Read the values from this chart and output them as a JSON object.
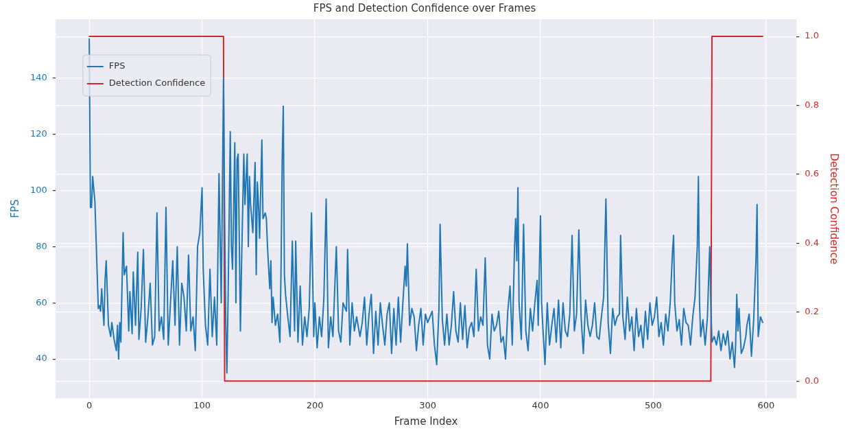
{
  "chart_data": {
    "type": "line",
    "title": "FPS and Detection Confidence over Frames",
    "xlabel": "Frame Index",
    "ylabel": "FPS",
    "y2label": "Detection Confidence",
    "xlim": [
      -30,
      627
    ],
    "xticks": [
      0,
      100,
      200,
      300,
      400,
      500,
      600
    ],
    "ylim": [
      26,
      161
    ],
    "yticks": [
      40,
      60,
      80,
      100,
      120,
      140
    ],
    "y2lim": [
      -0.05,
      1.05
    ],
    "y2ticks": [
      {
        "value": 0,
        "label": "0.0"
      },
      0.2,
      0.4,
      0.6,
      0.8,
      {
        "value": 1,
        "label": "1.0"
      }
    ],
    "grid": true,
    "legend": "top left",
    "line_style": "solid",
    "marker": "none",
    "series": [
      {
        "name": "FPS",
        "color": "#1f77b4",
        "axis": "y",
        "x": [
          0,
          1,
          2,
          3,
          5,
          8,
          9,
          10,
          11,
          13,
          14,
          15,
          17,
          19,
          20,
          22,
          24,
          25,
          26,
          27,
          28,
          30,
          31,
          33,
          35,
          36,
          38,
          39,
          41,
          43,
          44,
          46,
          48,
          50,
          52,
          54,
          56,
          58,
          60,
          62,
          64,
          66,
          68,
          70,
          72,
          74,
          76,
          78,
          80,
          82,
          84,
          86,
          88,
          90,
          92,
          94,
          96,
          98,
          100,
          101,
          103,
          105,
          107,
          109,
          111,
          113,
          115,
          117,
          119,
          120,
          121,
          122,
          123,
          125,
          126,
          127,
          129,
          130,
          131,
          132,
          134,
          135,
          137,
          138,
          140,
          141,
          142,
          143,
          145,
          147,
          148,
          149,
          150,
          151,
          153,
          154,
          156,
          157,
          158,
          160,
          161,
          162,
          163,
          165,
          167,
          169,
          170,
          171,
          172,
          173,
          174,
          176,
          178,
          180,
          182,
          183,
          185,
          187,
          189,
          191,
          193,
          195,
          197,
          199,
          200,
          202,
          204,
          206,
          208,
          210,
          212,
          214,
          216,
          219,
          221,
          223,
          225,
          228,
          229,
          231,
          233,
          235,
          237,
          240,
          242,
          244,
          246,
          248,
          250,
          252,
          254,
          256,
          258,
          260,
          262,
          264,
          266,
          268,
          270,
          272,
          274,
          276,
          278,
          280,
          281,
          282,
          284,
          286,
          288,
          290,
          292,
          294,
          296,
          298,
          300,
          302,
          304,
          306,
          308,
          310,
          311,
          313,
          315,
          317,
          319,
          321,
          323,
          325,
          327,
          329,
          331,
          333,
          335,
          337,
          339,
          341,
          343,
          345,
          347,
          349,
          351,
          353,
          355,
          357,
          359,
          361,
          363,
          365,
          367,
          369,
          371,
          373,
          375,
          377,
          378,
          379,
          380,
          381,
          383,
          385,
          387,
          389,
          391,
          393,
          395,
          397,
          398,
          399,
          400,
          401,
          402,
          404,
          406,
          408,
          410,
          412,
          414,
          416,
          418,
          420,
          422,
          424,
          426,
          428,
          430,
          432,
          434,
          436,
          438,
          440,
          442,
          444,
          446,
          448,
          450,
          452,
          454,
          456,
          458,
          460,
          462,
          464,
          466,
          468,
          470,
          471,
          473,
          475,
          477,
          479,
          481,
          483,
          485,
          487,
          489,
          491,
          493,
          495,
          497,
          499,
          501,
          503,
          505,
          507,
          509,
          511,
          513,
          515,
          517,
          518,
          519,
          521,
          523,
          525,
          527,
          529,
          531,
          533,
          535,
          537,
          539,
          540,
          541,
          542,
          544,
          546,
          548,
          550,
          551,
          552,
          554,
          556,
          558,
          560,
          562,
          564,
          566,
          568,
          570,
          572,
          573,
          574,
          575,
          576,
          578,
          580,
          582,
          583,
          585,
          587,
          589,
          591,
          592,
          593,
          595,
          597
        ],
        "values": [
          154,
          94,
          94,
          105,
          96,
          58,
          59,
          57,
          65,
          52,
          68,
          75,
          52,
          48,
          53,
          47,
          43,
          52,
          40,
          53,
          46,
          85,
          70,
          73,
          50,
          64,
          49,
          71,
          52,
          78,
          47,
          58,
          79,
          46,
          55,
          67,
          45,
          48,
          92,
          50,
          55,
          47,
          94,
          45,
          60,
          75,
          52,
          80,
          45,
          67,
          62,
          50,
          77,
          50,
          55,
          43,
          80,
          85,
          101,
          72,
          52,
          45,
          72,
          48,
          62,
          45,
          106,
          60,
          140,
          90,
          53,
          35,
          60,
          121,
          80,
          72,
          117,
          60,
          111,
          113,
          50,
          74,
          113,
          95,
          113,
          80,
          105,
          95,
          85,
          110,
          70,
          103,
          95,
          83,
          118,
          90,
          92,
          90,
          80,
          65,
          75,
          53,
          62,
          52,
          56,
          46,
          72,
          110,
          130,
          70,
          63,
          55,
          48,
          82,
          50,
          82,
          46,
          66,
          45,
          55,
          48,
          58,
          92,
          48,
          60,
          44,
          55,
          48,
          62,
          97,
          44,
          55,
          48,
          80,
          50,
          46,
          60,
          57,
          79,
          45,
          60,
          50,
          55,
          48,
          53,
          62,
          45,
          56,
          63,
          42,
          57,
          45,
          60,
          52,
          45,
          56,
          60,
          42,
          58,
          45,
          62,
          46,
          60,
          73,
          66,
          81,
          52,
          58,
          55,
          43,
          52,
          58,
          45,
          56,
          53,
          55,
          57,
          45,
          38,
          58,
          88,
          54,
          45,
          56,
          45,
          52,
          64,
          50,
          46,
          60,
          47,
          59,
          44,
          51,
          53,
          48,
          72,
          50,
          55,
          52,
          76,
          45,
          40,
          56,
          50,
          52,
          57,
          46,
          48,
          40,
          57,
          66,
          45,
          80,
          90,
          75,
          101,
          60,
          47,
          88,
          50,
          43,
          58,
          50,
          60,
          68,
          52,
          72,
          91,
          60,
          52,
          38,
          60,
          45,
          52,
          58,
          46,
          61,
          44,
          60,
          50,
          48,
          56,
          84,
          50,
          56,
          86,
          55,
          42,
          61,
          52,
          48,
          52,
          60,
          48,
          47,
          55,
          62,
          97,
          53,
          42,
          58,
          52,
          55,
          56,
          84,
          55,
          47,
          62,
          50,
          55,
          43,
          58,
          48,
          52,
          44,
          57,
          47,
          60,
          52,
          55,
          62,
          48,
          53,
          45,
          56,
          50,
          60,
          78,
          84,
          60,
          50,
          54,
          45,
          58,
          53,
          52,
          45,
          55,
          62,
          80,
          105,
          60,
          48,
          54,
          45,
          55,
          80,
          60,
          46,
          48,
          45,
          50,
          43,
          49,
          45,
          50,
          40,
          46,
          37,
          45,
          63,
          50,
          58,
          42,
          44,
          48,
          52,
          56,
          41,
          54,
          75,
          95,
          48,
          55,
          53
        ]
      },
      {
        "name": "Detection Confidence",
        "color": "#d62728",
        "axis": "y2",
        "x": [
          0,
          119,
          120,
          551,
          552,
          597
        ],
        "values": [
          1,
          1,
          0,
          0,
          1,
          1
        ]
      }
    ]
  }
}
